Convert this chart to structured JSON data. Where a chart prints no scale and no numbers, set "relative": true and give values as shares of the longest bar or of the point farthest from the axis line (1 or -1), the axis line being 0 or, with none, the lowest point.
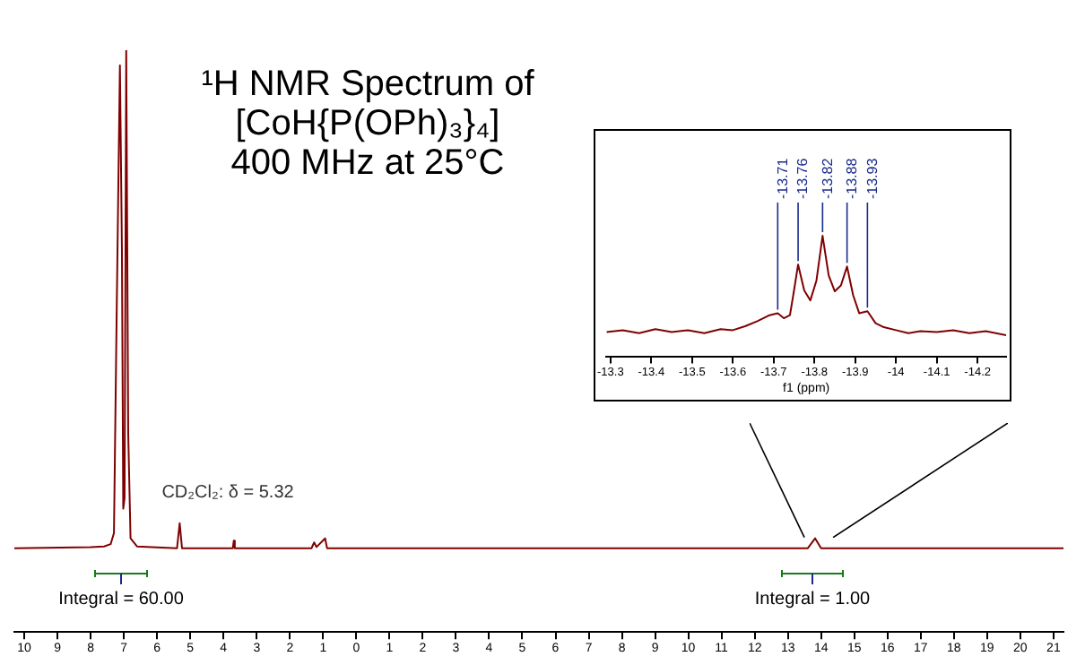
{
  "chart_data": [
    {
      "type": "line",
      "title": "¹H NMR Spectrum of\n[CoH{P(OPh)₃}₄]\n400 MHz at 25°C",
      "relative": true,
      "legend": false,
      "grid": false,
      "marker": "none",
      "tick_labels": "x",
      "xlim": [
        10.3,
        -21.3
      ],
      "xticks": [
        10,
        9,
        8,
        7,
        6,
        5,
        4,
        3,
        2,
        1,
        0,
        {
          "value": -1,
          "label": "1"
        },
        {
          "value": -2,
          "label": "2"
        },
        {
          "value": -3,
          "label": "3"
        },
        {
          "value": -4,
          "label": "4"
        },
        {
          "value": -5,
          "label": "5"
        },
        {
          "value": -6,
          "label": "6"
        },
        {
          "value": -7,
          "label": "7"
        },
        {
          "value": -8,
          "label": "8"
        },
        {
          "value": -9,
          "label": "9"
        },
        {
          "value": -10,
          "label": "10"
        },
        {
          "value": -11,
          "label": "11"
        },
        {
          "value": -12,
          "label": "12"
        },
        {
          "value": -13,
          "label": "13"
        },
        {
          "value": -14,
          "label": "14"
        },
        {
          "value": -15,
          "label": "15"
        },
        {
          "value": -16,
          "label": "16"
        },
        {
          "value": -17,
          "label": "17"
        },
        {
          "value": -18,
          "label": "18"
        },
        {
          "value": -19,
          "label": "19"
        },
        {
          "value": -20,
          "label": "20"
        },
        {
          "value": -21,
          "label": "21"
        }
      ],
      "series": [
        {
          "color": "#800000",
          "x": [
            10.3,
            8.0,
            7.6,
            7.4,
            7.3,
            7.22,
            7.12,
            7.06,
            7.02,
            6.98,
            6.93,
            6.87,
            6.8,
            6.6,
            5.4,
            5.32,
            5.25,
            3.72,
            3.69,
            3.66,
            1.35,
            1.27,
            1.2,
            0.94,
            0.88,
            -13.6,
            -13.82,
            -14.0,
            -21.3
          ],
          "values": [
            0.144,
            0.146,
            0.147,
            0.151,
            0.17,
            0.538,
            0.974,
            0.658,
            0.212,
            0.23,
            1.0,
            0.341,
            0.161,
            0.147,
            0.144,
            0.187,
            0.144,
            0.144,
            0.157,
            0.144,
            0.144,
            0.154,
            0.146,
            0.161,
            0.144,
            0.144,
            0.161,
            0.144,
            0.144
          ]
        }
      ],
      "annotations": [
        {
          "text": "CD₂Cl₂: δ = 5.32",
          "x": 5.32,
          "y": 0.187
        },
        "Integral = 60.00",
        "Integral = 1.00"
      ]
    },
    {
      "type": "line",
      "xlabel": "f1 (ppm)",
      "relative": true,
      "legend": false,
      "grid": false,
      "marker": "none",
      "tick_labels": "x",
      "xlim": [
        -13.29,
        -14.27
      ],
      "xticks": [
        -13.3,
        -13.4,
        -13.5,
        -13.6,
        -13.7,
        -13.8,
        -13.9,
        -14.0,
        -14.1,
        -14.2
      ],
      "series": [
        {
          "color": "#800000",
          "x": [
            -13.29,
            -13.33,
            -13.37,
            -13.41,
            -13.45,
            -13.49,
            -13.53,
            -13.57,
            -13.6,
            -13.63,
            -13.66,
            -13.69,
            -13.71,
            -13.725,
            -13.74,
            -13.75,
            -13.76,
            -13.775,
            -13.79,
            -13.805,
            -13.82,
            -13.835,
            -13.85,
            -13.865,
            -13.88,
            -13.895,
            -13.91,
            -13.93,
            -13.95,
            -13.97,
            -14.0,
            -14.03,
            -14.06,
            -14.1,
            -14.14,
            -14.18,
            -14.22,
            -14.27
          ],
          "values": [
            0.201,
            0.217,
            0.192,
            0.225,
            0.201,
            0.217,
            0.192,
            0.225,
            0.217,
            0.25,
            0.291,
            0.341,
            0.357,
            0.316,
            0.341,
            0.547,
            0.761,
            0.547,
            0.464,
            0.629,
            1.0,
            0.67,
            0.539,
            0.588,
            0.745,
            0.506,
            0.357,
            0.374,
            0.275,
            0.242,
            0.217,
            0.192,
            0.209,
            0.201,
            0.217,
            0.192,
            0.209,
            0.176
          ]
        }
      ],
      "annotations": [
        {
          "text": "-13.71",
          "x": -13.71,
          "y": 0.357
        },
        {
          "text": "-13.76",
          "x": -13.76,
          "y": 0.761
        },
        {
          "text": "-13.82",
          "x": -13.82,
          "y": 1.0
        },
        {
          "text": "-13.88",
          "x": -13.88,
          "y": 0.745
        },
        {
          "text": "-13.93",
          "x": -13.93,
          "y": 0.374
        }
      ]
    }
  ]
}
